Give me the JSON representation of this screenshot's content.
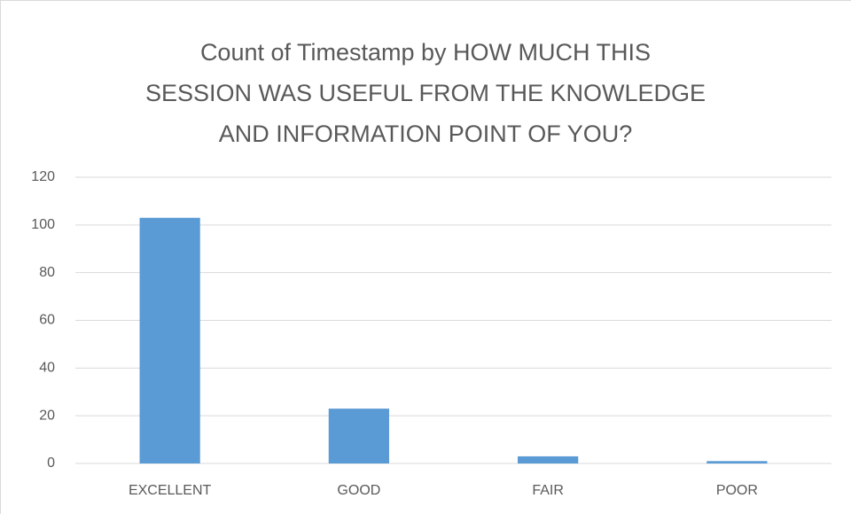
{
  "chart_data": {
    "type": "bar",
    "title": "Count of Timestamp by HOW MUCH THIS\nSESSION WAS USEFUL FROM THE KNOWLEDGE\nAND INFORMATION POINT OF YOU?",
    "categories": [
      "EXCELLENT",
      "GOOD",
      "FAIR",
      "POOR"
    ],
    "values": [
      103,
      23,
      3,
      1
    ],
    "color": "#5b9bd5",
    "ylim": [
      0,
      120
    ],
    "yticks": [
      0,
      20,
      40,
      60,
      80,
      100,
      120
    ],
    "grid": true
  }
}
